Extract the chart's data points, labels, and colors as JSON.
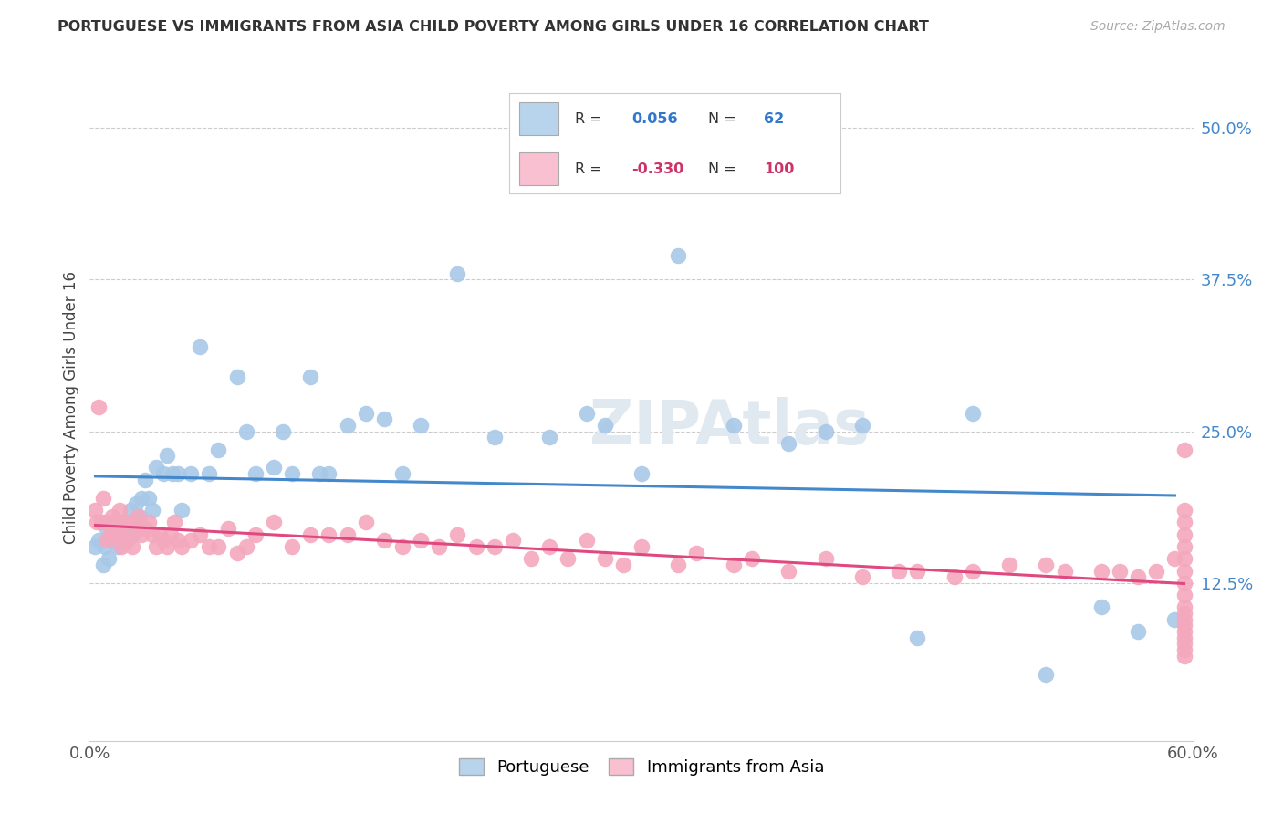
{
  "title": "PORTUGUESE VS IMMIGRANTS FROM ASIA CHILD POVERTY AMONG GIRLS UNDER 16 CORRELATION CHART",
  "source": "Source: ZipAtlas.com",
  "ylabel": "Child Poverty Among Girls Under 16",
  "xlim": [
    0.0,
    0.6
  ],
  "ylim": [
    -0.005,
    0.545
  ],
  "xticks": [
    0.0,
    0.1,
    0.2,
    0.3,
    0.4,
    0.5,
    0.6
  ],
  "xticklabels": [
    "0.0%",
    "",
    "",
    "",
    "",
    "",
    "60.0%"
  ],
  "yticks_right": [
    0.0,
    0.125,
    0.25,
    0.375,
    0.5
  ],
  "ytick_labels_right": [
    "",
    "12.5%",
    "25.0%",
    "37.5%",
    "50.0%"
  ],
  "r_portuguese": "0.056",
  "n_portuguese": "62",
  "r_asia": "-0.330",
  "n_asia": "100",
  "blue_scatter_color": "#a8c8e8",
  "pink_scatter_color": "#f4a8be",
  "blue_line_color": "#4488cc",
  "pink_line_color": "#e04880",
  "legend_blue_fill": "#b8d4ec",
  "legend_pink_fill": "#f8c0d0",
  "r_label_color": "#333333",
  "blue_value_color": "#3377cc",
  "pink_value_color": "#cc3366",
  "right_axis_color": "#4488cc",
  "watermark_color": "#e0e8f0",
  "port_x": [
    0.003,
    0.005,
    0.007,
    0.008,
    0.009,
    0.01,
    0.012,
    0.013,
    0.015,
    0.016,
    0.018,
    0.019,
    0.02,
    0.022,
    0.023,
    0.025,
    0.027,
    0.028,
    0.03,
    0.032,
    0.034,
    0.036,
    0.04,
    0.042,
    0.045,
    0.048,
    0.05,
    0.055,
    0.06,
    0.065,
    0.07,
    0.08,
    0.085,
    0.09,
    0.1,
    0.105,
    0.11,
    0.12,
    0.125,
    0.13,
    0.14,
    0.15,
    0.16,
    0.17,
    0.18,
    0.2,
    0.22,
    0.25,
    0.27,
    0.28,
    0.3,
    0.32,
    0.35,
    0.38,
    0.4,
    0.42,
    0.45,
    0.48,
    0.52,
    0.55,
    0.57,
    0.59
  ],
  "port_y": [
    0.155,
    0.16,
    0.14,
    0.155,
    0.17,
    0.145,
    0.16,
    0.175,
    0.155,
    0.165,
    0.175,
    0.16,
    0.175,
    0.185,
    0.165,
    0.19,
    0.18,
    0.195,
    0.21,
    0.195,
    0.185,
    0.22,
    0.215,
    0.23,
    0.215,
    0.215,
    0.185,
    0.215,
    0.32,
    0.215,
    0.235,
    0.295,
    0.25,
    0.215,
    0.22,
    0.25,
    0.215,
    0.295,
    0.215,
    0.215,
    0.255,
    0.265,
    0.26,
    0.215,
    0.255,
    0.38,
    0.245,
    0.245,
    0.265,
    0.255,
    0.215,
    0.395,
    0.255,
    0.24,
    0.25,
    0.255,
    0.08,
    0.265,
    0.05,
    0.105,
    0.085,
    0.095
  ],
  "asia_x": [
    0.003,
    0.004,
    0.005,
    0.006,
    0.007,
    0.008,
    0.009,
    0.01,
    0.011,
    0.012,
    0.013,
    0.014,
    0.015,
    0.016,
    0.017,
    0.018,
    0.019,
    0.02,
    0.022,
    0.023,
    0.025,
    0.026,
    0.028,
    0.03,
    0.032,
    0.034,
    0.036,
    0.038,
    0.04,
    0.042,
    0.044,
    0.046,
    0.048,
    0.05,
    0.055,
    0.06,
    0.065,
    0.07,
    0.075,
    0.08,
    0.085,
    0.09,
    0.1,
    0.11,
    0.12,
    0.13,
    0.14,
    0.15,
    0.16,
    0.17,
    0.18,
    0.19,
    0.2,
    0.21,
    0.22,
    0.23,
    0.24,
    0.25,
    0.26,
    0.27,
    0.28,
    0.29,
    0.3,
    0.32,
    0.33,
    0.35,
    0.36,
    0.38,
    0.4,
    0.42,
    0.44,
    0.45,
    0.47,
    0.48,
    0.5,
    0.52,
    0.53,
    0.55,
    0.56,
    0.57,
    0.58,
    0.59,
    0.595,
    0.595,
    0.595,
    0.595,
    0.595,
    0.595,
    0.595,
    0.595,
    0.595,
    0.595,
    0.595,
    0.595,
    0.595,
    0.595,
    0.595,
    0.595,
    0.595,
    0.595
  ],
  "asia_y": [
    0.185,
    0.175,
    0.27,
    0.175,
    0.195,
    0.175,
    0.16,
    0.175,
    0.165,
    0.18,
    0.165,
    0.17,
    0.175,
    0.185,
    0.155,
    0.165,
    0.175,
    0.16,
    0.175,
    0.155,
    0.17,
    0.18,
    0.165,
    0.17,
    0.175,
    0.165,
    0.155,
    0.165,
    0.16,
    0.155,
    0.165,
    0.175,
    0.16,
    0.155,
    0.16,
    0.165,
    0.155,
    0.155,
    0.17,
    0.15,
    0.155,
    0.165,
    0.175,
    0.155,
    0.165,
    0.165,
    0.165,
    0.175,
    0.16,
    0.155,
    0.16,
    0.155,
    0.165,
    0.155,
    0.155,
    0.16,
    0.145,
    0.155,
    0.145,
    0.16,
    0.145,
    0.14,
    0.155,
    0.14,
    0.15,
    0.14,
    0.145,
    0.135,
    0.145,
    0.13,
    0.135,
    0.135,
    0.13,
    0.135,
    0.14,
    0.14,
    0.135,
    0.135,
    0.135,
    0.13,
    0.135,
    0.145,
    0.235,
    0.185,
    0.175,
    0.165,
    0.155,
    0.145,
    0.135,
    0.125,
    0.115,
    0.105,
    0.1,
    0.095,
    0.09,
    0.085,
    0.08,
    0.075,
    0.07,
    0.065
  ]
}
